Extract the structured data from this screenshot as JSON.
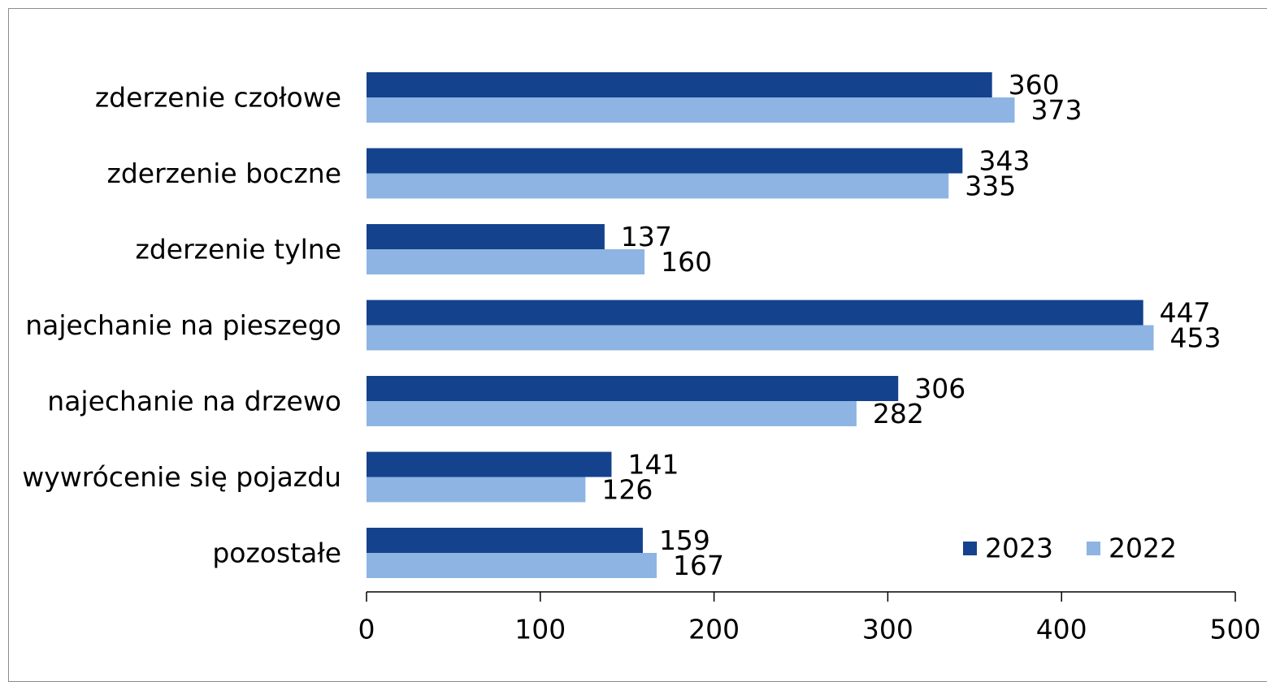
{
  "chart_data": {
    "type": "bar",
    "orientation": "horizontal",
    "categories": [
      "zderzenie czołowe",
      "zderzenie boczne",
      "zderzenie tylne",
      "najechanie na pieszego",
      "najechanie na drzewo",
      "wywrócenie się pojazdu",
      "pozostałe"
    ],
    "series": [
      {
        "name": "2023",
        "color": "#14428c",
        "values": [
          360,
          343,
          137,
          447,
          306,
          141,
          159
        ]
      },
      {
        "name": "2022",
        "color": "#8db4e2",
        "values": [
          373,
          335,
          160,
          453,
          282,
          126,
          167
        ]
      }
    ],
    "xlim": [
      0,
      500
    ],
    "xticks": [
      0,
      100,
      200,
      300,
      400,
      500
    ],
    "grid": false,
    "legend_position": "bottom-right",
    "data_labels": true
  }
}
